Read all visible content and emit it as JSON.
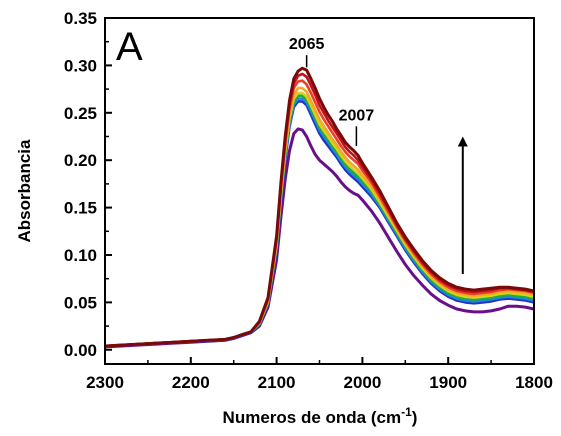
{
  "chart_data": {
    "type": "line",
    "panel_label": "A",
    "xlabel": "Numeros de onda (cm",
    "xlabel_sup": "-1",
    "xlabel_end": ")",
    "ylabel": "Absorbancia",
    "xlim": [
      2300,
      1800
    ],
    "ylim": [
      -0.015,
      0.35
    ],
    "x_reversed": true,
    "x_ticks": [
      2300,
      2200,
      2100,
      2000,
      1900,
      1800
    ],
    "y_ticks": [
      0.0,
      0.05,
      0.1,
      0.15,
      0.2,
      0.25,
      0.3,
      0.35
    ],
    "y_tick_labels": [
      "0.00",
      "0.05",
      "0.10",
      "0.15",
      "0.20",
      "0.25",
      "0.30",
      "0.35"
    ],
    "grid": false,
    "legend": "none",
    "annotations": [
      {
        "text": "2065",
        "x": 2065,
        "y": 0.298,
        "label_y": 0.315
      },
      {
        "text": "2007",
        "x": 2007,
        "y": 0.215,
        "label_y": 0.24
      }
    ],
    "arrow": {
      "x": 1883,
      "y_start": 0.08,
      "y_end": 0.225,
      "direction": "up"
    },
    "x": [
      2300,
      2280,
      2260,
      2240,
      2220,
      2200,
      2180,
      2160,
      2150,
      2140,
      2130,
      2120,
      2110,
      2100,
      2095,
      2090,
      2085,
      2080,
      2075,
      2070,
      2065,
      2060,
      2055,
      2050,
      2045,
      2040,
      2035,
      2030,
      2025,
      2020,
      2015,
      2010,
      2005,
      2000,
      1990,
      1980,
      1970,
      1960,
      1950,
      1940,
      1930,
      1920,
      1910,
      1900,
      1890,
      1880,
      1870,
      1860,
      1850,
      1840,
      1830,
      1820,
      1810,
      1800
    ],
    "series": [
      {
        "color": "#6a0f8a",
        "values": [
          0.003,
          0.004,
          0.005,
          0.006,
          0.007,
          0.008,
          0.009,
          0.01,
          0.012,
          0.015,
          0.018,
          0.025,
          0.045,
          0.095,
          0.14,
          0.18,
          0.21,
          0.228,
          0.233,
          0.232,
          0.225,
          0.215,
          0.206,
          0.2,
          0.196,
          0.192,
          0.188,
          0.183,
          0.177,
          0.172,
          0.168,
          0.165,
          0.163,
          0.158,
          0.147,
          0.134,
          0.119,
          0.104,
          0.09,
          0.078,
          0.068,
          0.059,
          0.052,
          0.047,
          0.043,
          0.041,
          0.04,
          0.04,
          0.041,
          0.043,
          0.046,
          0.046,
          0.045,
          0.043
        ]
      },
      {
        "color": "#2233cc",
        "values": [
          0.004,
          0.005,
          0.006,
          0.007,
          0.008,
          0.009,
          0.009,
          0.01,
          0.012,
          0.015,
          0.018,
          0.026,
          0.048,
          0.105,
          0.155,
          0.2,
          0.235,
          0.256,
          0.262,
          0.262,
          0.258,
          0.248,
          0.238,
          0.228,
          0.221,
          0.215,
          0.209,
          0.203,
          0.196,
          0.19,
          0.185,
          0.181,
          0.177,
          0.172,
          0.162,
          0.15,
          0.135,
          0.12,
          0.105,
          0.092,
          0.08,
          0.07,
          0.062,
          0.056,
          0.052,
          0.05,
          0.049,
          0.05,
          0.051,
          0.053,
          0.054,
          0.053,
          0.052,
          0.05
        ]
      },
      {
        "color": "#1a8ad4",
        "values": [
          0.004,
          0.005,
          0.006,
          0.007,
          0.008,
          0.009,
          0.01,
          0.011,
          0.013,
          0.016,
          0.019,
          0.027,
          0.049,
          0.107,
          0.158,
          0.203,
          0.238,
          0.259,
          0.265,
          0.265,
          0.261,
          0.252,
          0.242,
          0.232,
          0.225,
          0.219,
          0.212,
          0.206,
          0.199,
          0.193,
          0.188,
          0.184,
          0.18,
          0.175,
          0.165,
          0.152,
          0.137,
          0.122,
          0.107,
          0.094,
          0.082,
          0.072,
          0.064,
          0.058,
          0.054,
          0.052,
          0.051,
          0.052,
          0.053,
          0.055,
          0.056,
          0.055,
          0.054,
          0.052
        ]
      },
      {
        "color": "#22aa44",
        "values": [
          0.004,
          0.005,
          0.006,
          0.007,
          0.008,
          0.009,
          0.01,
          0.011,
          0.013,
          0.016,
          0.019,
          0.027,
          0.05,
          0.109,
          0.16,
          0.206,
          0.241,
          0.262,
          0.268,
          0.268,
          0.264,
          0.255,
          0.245,
          0.235,
          0.228,
          0.222,
          0.215,
          0.209,
          0.202,
          0.196,
          0.191,
          0.187,
          0.183,
          0.178,
          0.168,
          0.154,
          0.139,
          0.124,
          0.109,
          0.096,
          0.084,
          0.074,
          0.066,
          0.06,
          0.056,
          0.054,
          0.053,
          0.054,
          0.055,
          0.057,
          0.058,
          0.057,
          0.056,
          0.054
        ]
      },
      {
        "color": "#d4d41a",
        "values": [
          0.004,
          0.005,
          0.006,
          0.007,
          0.008,
          0.009,
          0.01,
          0.011,
          0.013,
          0.016,
          0.019,
          0.028,
          0.051,
          0.111,
          0.163,
          0.209,
          0.244,
          0.265,
          0.271,
          0.271,
          0.267,
          0.258,
          0.248,
          0.238,
          0.231,
          0.225,
          0.218,
          0.212,
          0.205,
          0.199,
          0.194,
          0.19,
          0.186,
          0.181,
          0.17,
          0.156,
          0.141,
          0.126,
          0.111,
          0.098,
          0.086,
          0.076,
          0.068,
          0.062,
          0.058,
          0.056,
          0.055,
          0.056,
          0.057,
          0.059,
          0.06,
          0.059,
          0.058,
          0.056
        ]
      },
      {
        "color": "#f5a623",
        "values": [
          0.004,
          0.005,
          0.006,
          0.007,
          0.008,
          0.009,
          0.01,
          0.011,
          0.013,
          0.016,
          0.019,
          0.028,
          0.052,
          0.113,
          0.166,
          0.212,
          0.248,
          0.269,
          0.276,
          0.276,
          0.272,
          0.263,
          0.253,
          0.243,
          0.236,
          0.229,
          0.222,
          0.216,
          0.209,
          0.203,
          0.198,
          0.194,
          0.19,
          0.184,
          0.173,
          0.159,
          0.144,
          0.128,
          0.113,
          0.1,
          0.088,
          0.078,
          0.07,
          0.064,
          0.06,
          0.058,
          0.057,
          0.058,
          0.059,
          0.061,
          0.062,
          0.061,
          0.06,
          0.058
        ]
      },
      {
        "color": "#e8402a",
        "values": [
          0.004,
          0.005,
          0.006,
          0.007,
          0.008,
          0.009,
          0.01,
          0.011,
          0.013,
          0.016,
          0.019,
          0.029,
          0.053,
          0.116,
          0.17,
          0.217,
          0.254,
          0.276,
          0.283,
          0.284,
          0.28,
          0.271,
          0.261,
          0.251,
          0.243,
          0.236,
          0.229,
          0.222,
          0.215,
          0.209,
          0.204,
          0.2,
          0.196,
          0.189,
          0.177,
          0.162,
          0.146,
          0.13,
          0.115,
          0.102,
          0.09,
          0.08,
          0.072,
          0.066,
          0.062,
          0.06,
          0.059,
          0.06,
          0.061,
          0.063,
          0.064,
          0.063,
          0.062,
          0.06
        ]
      },
      {
        "color": "#c0101a",
        "values": [
          0.004,
          0.005,
          0.006,
          0.007,
          0.008,
          0.009,
          0.01,
          0.011,
          0.013,
          0.016,
          0.019,
          0.029,
          0.054,
          0.118,
          0.173,
          0.221,
          0.259,
          0.281,
          0.289,
          0.291,
          0.288,
          0.279,
          0.269,
          0.258,
          0.25,
          0.242,
          0.235,
          0.228,
          0.221,
          0.214,
          0.209,
          0.205,
          0.2,
          0.193,
          0.18,
          0.165,
          0.149,
          0.132,
          0.117,
          0.104,
          0.092,
          0.082,
          0.074,
          0.068,
          0.064,
          0.062,
          0.061,
          0.062,
          0.063,
          0.065,
          0.065,
          0.064,
          0.063,
          0.061
        ]
      },
      {
        "color": "#7a0a0a",
        "values": [
          0.004,
          0.005,
          0.006,
          0.007,
          0.008,
          0.009,
          0.01,
          0.011,
          0.013,
          0.016,
          0.019,
          0.03,
          0.055,
          0.12,
          0.176,
          0.225,
          0.263,
          0.286,
          0.294,
          0.297,
          0.295,
          0.286,
          0.276,
          0.265,
          0.256,
          0.248,
          0.241,
          0.233,
          0.226,
          0.219,
          0.214,
          0.21,
          0.205,
          0.197,
          0.183,
          0.168,
          0.151,
          0.134,
          0.119,
          0.106,
          0.094,
          0.084,
          0.076,
          0.07,
          0.066,
          0.064,
          0.063,
          0.064,
          0.065,
          0.066,
          0.066,
          0.065,
          0.064,
          0.062
        ]
      }
    ]
  }
}
